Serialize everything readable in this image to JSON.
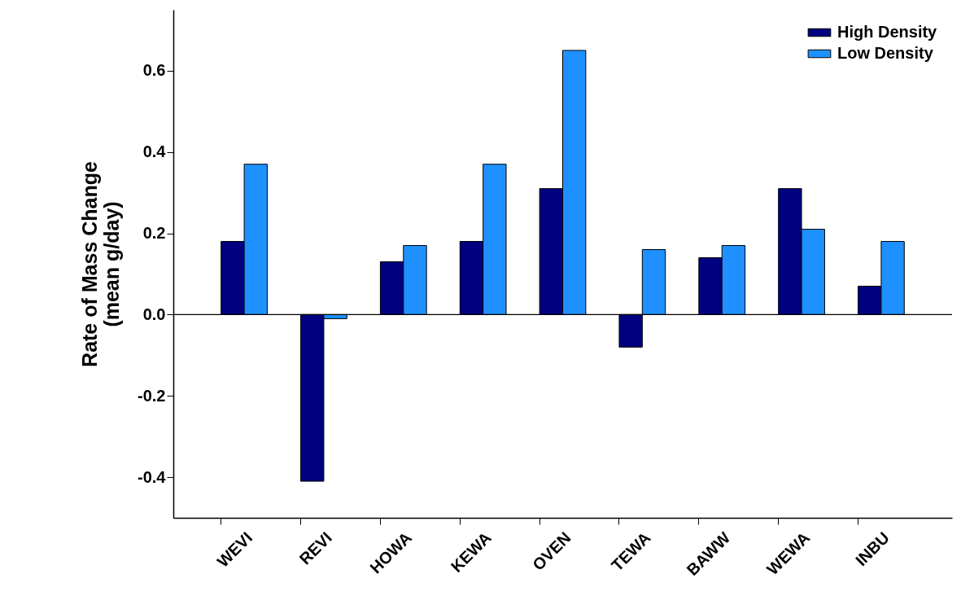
{
  "chart_data": {
    "type": "bar",
    "ylabel": "Rate of Mass Change\n(mean g/day)",
    "categories": [
      "WEVI",
      "REVI",
      "HOWA",
      "KEWA",
      "OVEN",
      "TEWA",
      "BAWW",
      "WEWA",
      "INBU"
    ],
    "series": [
      {
        "name": "High Density",
        "color": "#000080",
        "values": [
          0.18,
          -0.41,
          0.13,
          0.18,
          0.31,
          -0.08,
          0.14,
          0.31,
          0.07
        ]
      },
      {
        "name": "Low Density",
        "color": "#1e90ff",
        "values": [
          0.37,
          -0.01,
          0.17,
          0.37,
          0.65,
          0.16,
          0.17,
          0.21,
          0.18
        ]
      }
    ],
    "ylim": [
      -0.5,
      0.75
    ],
    "yticks": [
      -0.4,
      -0.2,
      {
        "value": 0,
        "label": "0.0"
      },
      0.2,
      0.4,
      0.6
    ],
    "ref_lines": [
      {
        "axis": "y",
        "value": 0
      }
    ],
    "grid": false,
    "legend": "top right"
  }
}
